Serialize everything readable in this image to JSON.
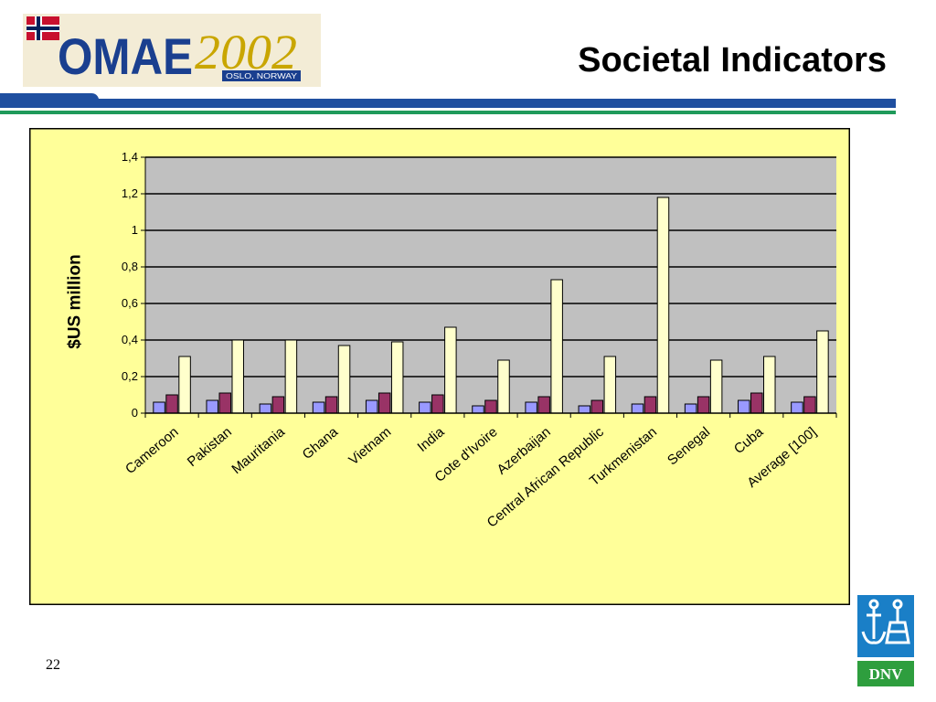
{
  "slide": {
    "title": "Societal Indicators",
    "page_number": "22"
  },
  "logo": {
    "main_text": "OMAE",
    "year_text": "2002",
    "location_text": "OSLO, NORWAY",
    "flag": "norway-flag-icon"
  },
  "dnv_logo": {
    "text": "DNV",
    "icon": "dnv-anchor-icon"
  },
  "colors": {
    "chart_bg": "#ffff99",
    "plot_bg": "#c0c0c0",
    "series_1": "#9999ff",
    "series_2": "#993366",
    "series_3": "#ffffcc",
    "logo_blue": "#1a3f8f",
    "logo_gold": "#c9a600",
    "rule_blue": "#1f4fa0",
    "rule_green": "#1f9a5a",
    "dnv_blue": "#1a7fc7",
    "dnv_green": "#2e9e3e"
  },
  "chart_data": {
    "type": "bar",
    "ylabel": "$US million",
    "xlabel": "",
    "ylim": [
      0,
      1.4
    ],
    "yticks": [
      "0",
      "0,2",
      "0,4",
      "0,6",
      "0,8",
      "1",
      "1,2",
      "1,4"
    ],
    "grid": true,
    "legend": "none",
    "categories": [
      "Cameroon",
      "Pakistan",
      "Mauritania",
      "Ghana",
      "Vietnam",
      "India",
      "Cote d'Ivoire",
      "Azerbaijan",
      "Central African Republic",
      "Turkmenistan",
      "Senegal",
      "Cuba",
      "Average [100]"
    ],
    "series": [
      {
        "values": [
          0.06,
          0.07,
          0.05,
          0.06,
          0.07,
          0.06,
          0.04,
          0.06,
          0.04,
          0.05,
          0.05,
          0.07,
          0.06
        ]
      },
      {
        "values": [
          0.1,
          0.11,
          0.09,
          0.09,
          0.11,
          0.1,
          0.07,
          0.09,
          0.07,
          0.09,
          0.09,
          0.11,
          0.09
        ]
      },
      {
        "values": [
          0.31,
          0.4,
          0.4,
          0.37,
          0.39,
          0.47,
          0.29,
          0.73,
          0.31,
          1.18,
          0.29,
          0.31,
          0.45
        ]
      }
    ]
  }
}
